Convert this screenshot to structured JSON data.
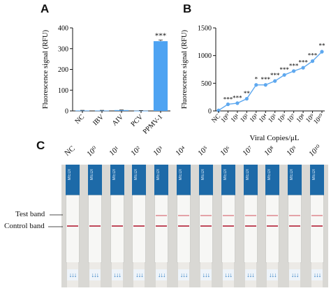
{
  "panels": {
    "a": "A",
    "b": "B",
    "c": "C"
  },
  "colors": {
    "bar": "#4ea3f2",
    "line": "#5ea8ef",
    "test_band": "#e4a3a8",
    "control_band": "#c0485a",
    "strip_blue": "#1d6aa8"
  },
  "chart_data": [
    {
      "type": "bar",
      "panel": "A",
      "categories": [
        "NC",
        "IBV",
        "AIV",
        "PCV",
        "PPMV-1"
      ],
      "values": [
        2,
        2,
        4,
        1,
        336
      ],
      "error": [
        1,
        1,
        1,
        1,
        6
      ],
      "ylabel": "Fluorescence signal (RFU)",
      "xlabel": "",
      "ylim": [
        0,
        400
      ],
      "yticks": [
        "0",
        "100",
        "200",
        "300",
        "400"
      ],
      "significance": [
        {
          "category": "PPMV-1",
          "label": "***"
        }
      ]
    },
    {
      "type": "line",
      "panel": "B",
      "categories": [
        "NC",
        "10⁰",
        "10¹",
        "10²",
        "10³",
        "10⁴",
        "10⁵",
        "10⁶",
        "10⁷",
        "10⁸",
        "10⁹",
        "10¹⁰"
      ],
      "values": [
        10,
        120,
        140,
        220,
        470,
        470,
        540,
        650,
        720,
        780,
        900,
        1070
      ],
      "error": [
        5,
        15,
        15,
        20,
        30,
        20,
        25,
        20,
        20,
        20,
        25,
        35
      ],
      "significance": [
        "",
        "***",
        "***",
        "**",
        "*",
        "***",
        "***",
        "***",
        "***",
        "***",
        "***",
        "**"
      ],
      "ylabel": "Fluorescence signal (RFU)",
      "xlabel": "Viral Copies/μL",
      "ylim": [
        0,
        1500
      ],
      "yticks": [
        "0",
        "500",
        "1000",
        "1500"
      ]
    }
  ],
  "panel_c": {
    "strip_labels": [
      "NC",
      "10⁰",
      "10¹",
      "10²",
      "10³",
      "10⁴",
      "10⁵",
      "10⁶",
      "10⁷",
      "10⁸",
      "10⁹",
      "10¹⁰"
    ],
    "test_band_label": "Test band",
    "control_band_label": "Control band",
    "strip_brand": "MEDI",
    "test_band_visible": [
      false,
      false,
      false,
      false,
      true,
      true,
      true,
      true,
      true,
      true,
      true,
      true
    ]
  }
}
